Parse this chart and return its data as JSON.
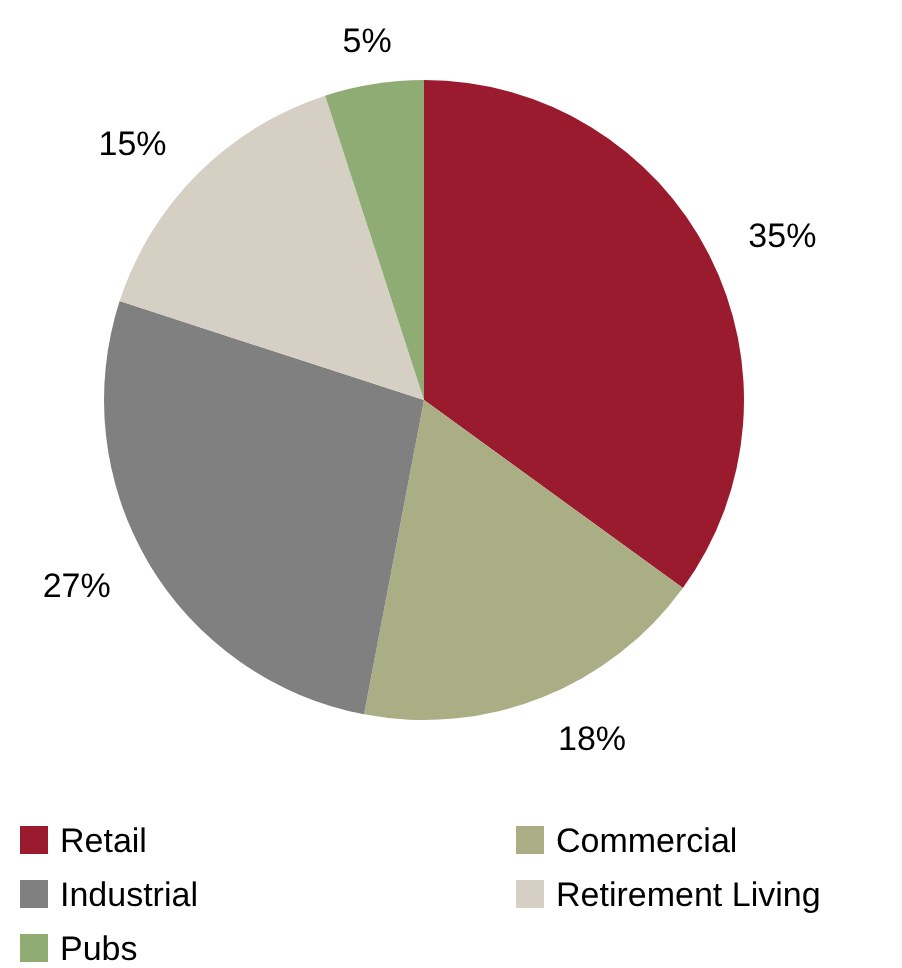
{
  "chart_data": {
    "type": "pie",
    "categories": [
      "Retail",
      "Commercial",
      "Industrial",
      "Retirement Living",
      "Pubs"
    ],
    "values": [
      35,
      18,
      27,
      15,
      5
    ],
    "colors": [
      "#9b1b2e",
      "#a9ae85",
      "#808080",
      "#d6d0c4",
      "#8fac74"
    ],
    "value_labels": [
      "35%",
      "18%",
      "27%",
      "15%",
      "5%"
    ],
    "legend": "bottom"
  }
}
